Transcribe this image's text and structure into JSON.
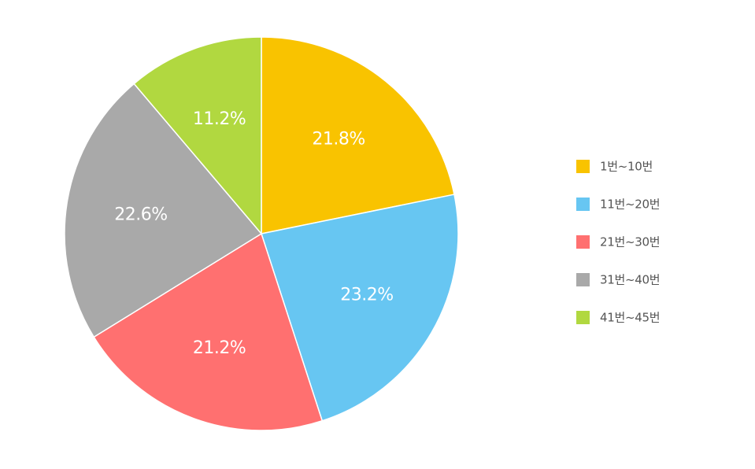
{
  "chart_data": {
    "type": "pie",
    "title": "",
    "legend_position": "right",
    "slices": [
      {
        "label": "1번~10번",
        "value": 21.8,
        "value_label": "21.8%",
        "color": "#F9C300"
      },
      {
        "label": "11번~20번",
        "value": 23.2,
        "value_label": "23.2%",
        "color": "#67C6F2"
      },
      {
        "label": "21번~30번",
        "value": 21.2,
        "value_label": "21.2%",
        "color": "#FF7070"
      },
      {
        "label": "31번~40번",
        "value": 22.6,
        "value_label": "22.6%",
        "color": "#A9A9A9"
      },
      {
        "label": "41번~45번",
        "value": 11.2,
        "value_label": "11.2%",
        "color": "#B1D840"
      }
    ]
  }
}
